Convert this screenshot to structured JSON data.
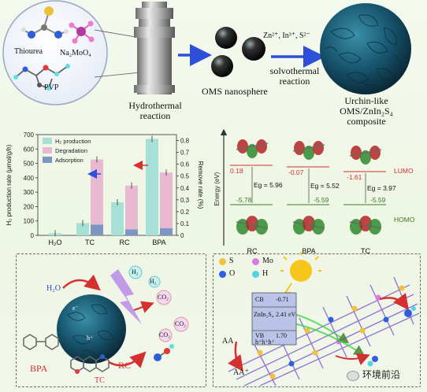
{
  "top": {
    "bubble": {
      "thiourea": "Thiourea",
      "sodium_molybdate": "Na₂MoO₄",
      "pvp": "PVP"
    },
    "autoclave_label": [
      "Hydrothermal",
      "reaction"
    ],
    "nanosphere_label": "OMS nanosphere",
    "ions": "Zn²⁺, In³⁺, S²⁻",
    "solvothermal_label": [
      "solvothermal",
      "reaction"
    ],
    "product_label": [
      "Urchin-like",
      "OMS/ZnIn₂S₄",
      "composite"
    ]
  },
  "chart_data": {
    "type": "bar",
    "categories": [
      "H₂O",
      "TC",
      "RC",
      "BPA"
    ],
    "ylabel": "H₂ production rate (μmol/g/h)",
    "y2label": "Remove rate (%)",
    "ylim": [
      0,
      700
    ],
    "y2lim": [
      0,
      0.85
    ],
    "yticks": [
      "0",
      "100",
      "200",
      "300",
      "400",
      "500",
      "600",
      "700"
    ],
    "y2ticks": [
      "0",
      "0.1",
      "0.2",
      "0.3",
      "0.4",
      "0.5",
      "0.6",
      "0.7",
      "0.8"
    ],
    "legend": [
      "H₂ production",
      "Degradation",
      "Adsorption"
    ],
    "legend_position": "top-left",
    "series": [
      {
        "name": "H₂ production",
        "values": [
          15,
          85,
          230,
          670
        ],
        "color": "#a6e0d6"
      },
      {
        "name": "Degradation",
        "values": [
          null,
          0.64,
          0.42,
          0.53
        ],
        "color": "#e8b9d0"
      },
      {
        "name": "Adsorption",
        "values": [
          null,
          0.09,
          0.05,
          0.06
        ],
        "color": "#7d96c4"
      }
    ]
  },
  "energy": {
    "ylabel": "Energy (eV)",
    "molecules": [
      {
        "name": "RC",
        "lumo": "0.18",
        "homo": "-5.78",
        "eg": "5.96"
      },
      {
        "name": "BPA",
        "lumo": "-0.07",
        "homo": "-5.59",
        "eg": "5.52"
      },
      {
        "name": "TC",
        "lumo": "-1.61",
        "homo": "-5.59",
        "eg": "3.97"
      }
    ],
    "lumo_label": "LUMO",
    "homo_label": "HOMO",
    "eg_symbol": "Eg ="
  },
  "bottom_left": {
    "h2o": "H₂O",
    "h2": "H₂",
    "co2": "CO₂",
    "electron": "e⁻",
    "hole": "h⁺",
    "bpa": "BPA",
    "tc": "TC",
    "rc": "RC"
  },
  "bottom_right": {
    "legend": [
      {
        "label": "S",
        "color": "#f3c23a"
      },
      {
        "label": "Mo",
        "color": "#d77be0"
      },
      {
        "label": "O",
        "color": "#2f5fe0"
      },
      {
        "label": "H",
        "color": "#4fd6e4"
      }
    ],
    "band": {
      "cb": "CB",
      "cb_val": "-0.71",
      "mat": "ZnIn₂S₄",
      "mid_val": "2.41 eV",
      "vb": "VB",
      "vb_val": "1.70",
      "holes": "h⁺h⁺h⁺"
    },
    "aa": "AA",
    "aa_plus": "AA⁺"
  },
  "watermark": "环境前沿",
  "colors": {
    "arrow_blue": "#2e4fd9",
    "red": "#d43030",
    "green": "#3a7a2a",
    "urchin": "#16536b"
  }
}
